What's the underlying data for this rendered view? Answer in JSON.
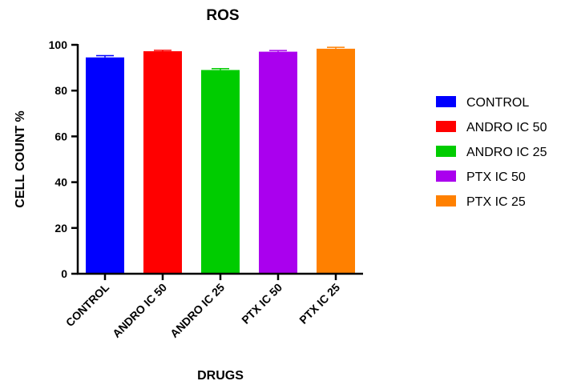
{
  "chart_data": {
    "type": "bar",
    "title": "ROS",
    "xlabel": "DRUGS",
    "ylabel": "CELL COUNT %",
    "categories": [
      "CONTROL",
      "ANDRO IC 50",
      "ANDRO IC 25",
      "PTX IC 50",
      "PTX IC 25"
    ],
    "values": [
      94.5,
      97.2,
      89.0,
      97.0,
      98.3
    ],
    "error": [
      0.8,
      0.4,
      0.6,
      0.5,
      0.6
    ],
    "colors": [
      "#0000ff",
      "#ff0000",
      "#00cc00",
      "#aa00ee",
      "#ff8000"
    ],
    "ylim": [
      0,
      100
    ],
    "yticks": [
      0,
      20,
      40,
      60,
      80,
      100
    ],
    "legend": {
      "position": "right",
      "entries": [
        "CONTROL",
        "ANDRO IC 50",
        "ANDRO IC 25",
        "PTX IC 50",
        "PTX IC 25"
      ]
    },
    "grid": false
  }
}
